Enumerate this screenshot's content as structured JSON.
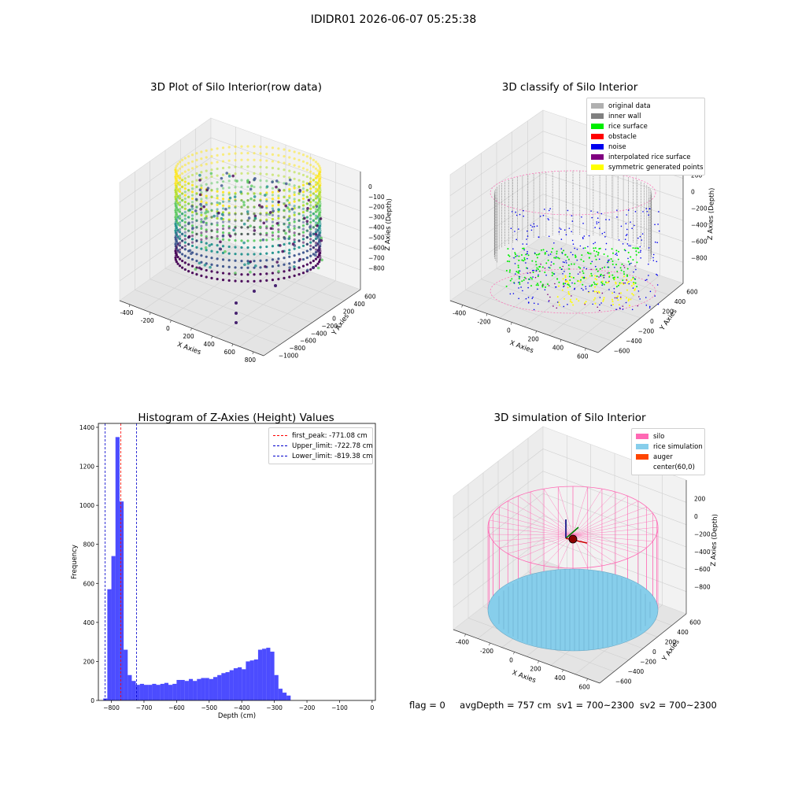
{
  "suptitle": "IDIDR01 2026-06-07 05:25:38",
  "panels": {
    "raw": {
      "title": "3D Plot of Silo Interior(row data)",
      "xlabel": "X Axies",
      "ylabel": "Y Axies",
      "zlabel": "Z Axies (Depth)",
      "xticks": [
        "-400",
        "-200",
        "0",
        "200",
        "400",
        "600",
        "800"
      ],
      "yticks": [
        "600",
        "400",
        "200",
        "0",
        "−200",
        "−400",
        "−600",
        "−800",
        "−1000"
      ],
      "zticks": [
        "0",
        "−100",
        "−200",
        "−300",
        "−400",
        "−500",
        "−600",
        "−700",
        "−800"
      ]
    },
    "classify": {
      "title": "3D classify of Silo Interior",
      "xlabel": "X Axies",
      "ylabel": "Y Axies",
      "zlabel": "Z Axies (Depth)",
      "xticks": [
        "-400",
        "-200",
        "0",
        "200",
        "400",
        "600"
      ],
      "yticks": [
        "600",
        "400",
        "200",
        "0",
        "−200",
        "−400",
        "−600"
      ],
      "zticks": [
        "200",
        "0",
        "−200",
        "−400",
        "−600",
        "−800"
      ],
      "legend": [
        {
          "label": "original data",
          "color": "#b0b0b0"
        },
        {
          "label": "inner wall",
          "color": "#808080"
        },
        {
          "label": "rice surface",
          "color": "#00ee00"
        },
        {
          "label": "obstacle",
          "color": "#ff0000"
        },
        {
          "label": "noise",
          "color": "#0000ee"
        },
        {
          "label": "interpolated rice surface",
          "color": "#800080"
        },
        {
          "label": "symmetric generated points",
          "color": "#ffff00"
        }
      ]
    },
    "sim": {
      "title": "3D simulation of Silo Interior",
      "xlabel": "X Axies",
      "ylabel": "Y Axies",
      "zlabel": "Z Axies (Depth)",
      "xticks": [
        "-400",
        "-200",
        "0",
        "200",
        "400",
        "600"
      ],
      "yticks": [
        "600",
        "400",
        "200",
        "0",
        "−200",
        "−400",
        "−600"
      ],
      "zticks": [
        "200",
        "0",
        "−200",
        "−400",
        "−600",
        "−800"
      ],
      "legend": [
        {
          "label": "silo",
          "color": "#ff69b4"
        },
        {
          "label": "rice simulation",
          "color": "#87ceeb"
        },
        {
          "label": "auger",
          "color": "#ff4500"
        },
        {
          "label": "center(60,0)",
          "color": ""
        }
      ]
    }
  },
  "chart_data": {
    "type": "bar",
    "title": "Histogram of Z-Axies (Height) Values",
    "xlabel": "Depth (cm)",
    "ylabel": "Frequency",
    "xlim": [
      -840,
      10
    ],
    "ylim": [
      0,
      1420
    ],
    "xticks": [
      -800,
      -700,
      -600,
      -500,
      -400,
      -300,
      -200,
      -100,
      0
    ],
    "yticks": [
      0,
      200,
      400,
      600,
      800,
      1000,
      1200,
      1400
    ],
    "bin_width": 12.5,
    "bin_start": -825,
    "values": [
      10,
      570,
      740,
      1350,
      1020,
      260,
      130,
      100,
      80,
      85,
      80,
      80,
      85,
      80,
      85,
      90,
      80,
      85,
      105,
      105,
      100,
      110,
      100,
      110,
      115,
      115,
      110,
      120,
      130,
      140,
      145,
      155,
      165,
      170,
      160,
      200,
      205,
      210,
      260,
      265,
      270,
      250,
      130,
      60,
      40,
      25
    ],
    "bar_color": "#0000ff",
    "lines": [
      {
        "label": "first_peak: -771.08 cm",
        "x": -771.08,
        "color": "#ff0000"
      },
      {
        "label": "Upper_limit: -722.78 cm",
        "x": -722.78,
        "color": "#0000cc"
      },
      {
        "label": "Lower_limit: -819.38 cm",
        "x": -819.38,
        "color": "#0000cc"
      }
    ]
  },
  "status": {
    "flag": "flag = 0",
    "avg": "avgDepth = 757 cm",
    "sv1": "sv1 = 700~2300",
    "sv2": "sv2 = 700~2300"
  }
}
